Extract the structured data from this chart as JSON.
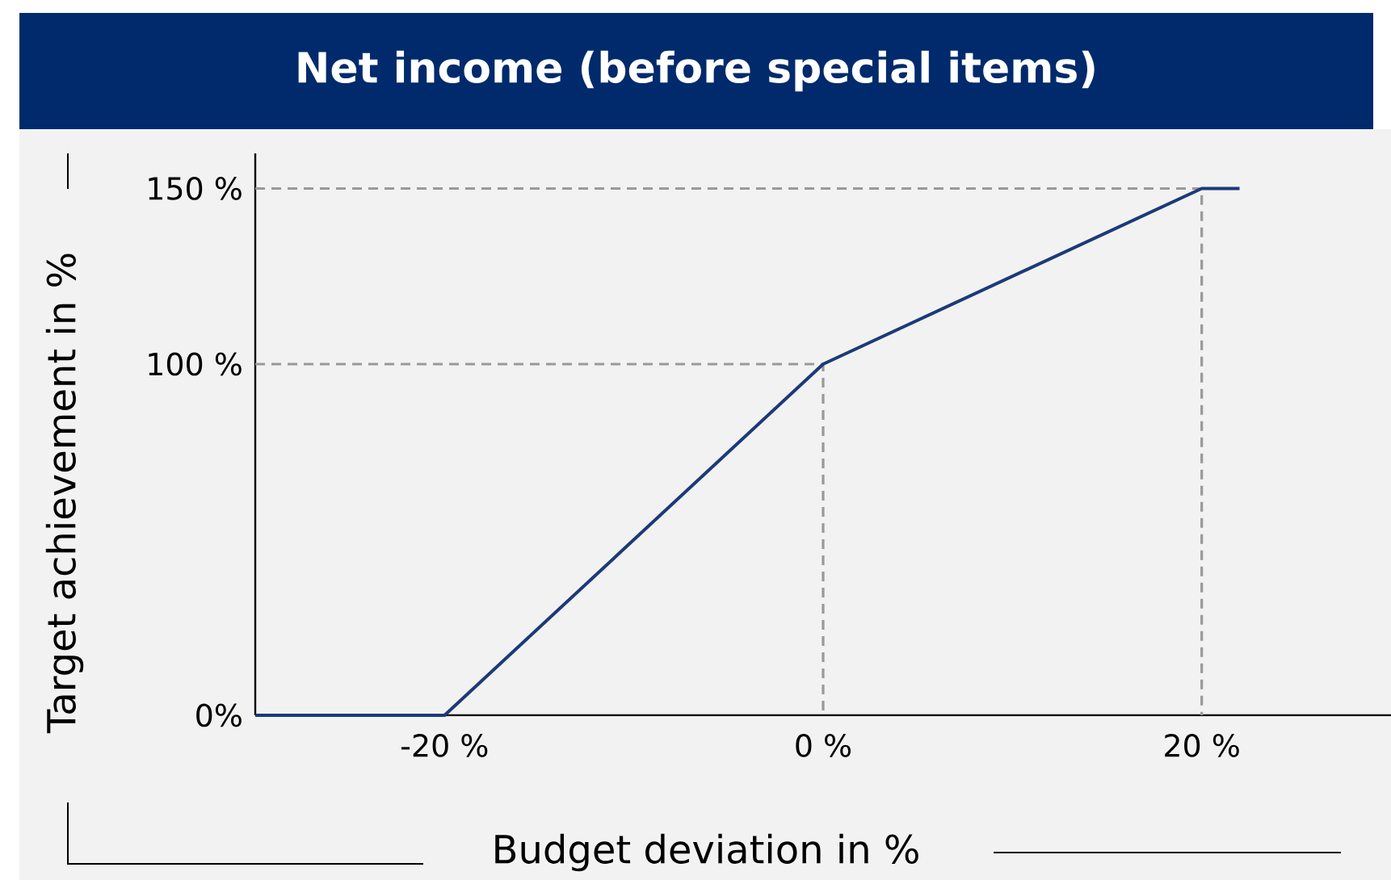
{
  "chart_data": {
    "type": "line",
    "title": "Net income (before special items)",
    "xlabel": "Budget deviation in %",
    "ylabel": "Target achievement in %",
    "xlim": [
      -30,
      30
    ],
    "ylim": [
      0,
      160
    ],
    "xticks": [
      {
        "value": -20,
        "label": "-20 %"
      },
      {
        "value": 0,
        "label": "0 %"
      },
      {
        "value": 20,
        "label": "20 %"
      }
    ],
    "yticks": [
      {
        "value": 0,
        "label": "0%"
      },
      {
        "value": 100,
        "label": "100 %"
      },
      {
        "value": 150,
        "label": "150 %"
      }
    ],
    "series": [
      {
        "color": "#999999",
        "line_style": "dashed",
        "x": [
          -30,
          0,
          0
        ],
        "values": [
          100,
          100,
          0
        ]
      },
      {
        "color": "#999999",
        "line_style": "dashed",
        "x": [
          -30,
          20,
          20
        ],
        "values": [
          150,
          150,
          0
        ]
      },
      {
        "color": "#1b3a78",
        "line_style": "solid",
        "x": [
          -30,
          -20,
          0,
          20,
          22
        ],
        "values": [
          0,
          0,
          100,
          150,
          150
        ]
      }
    ]
  }
}
